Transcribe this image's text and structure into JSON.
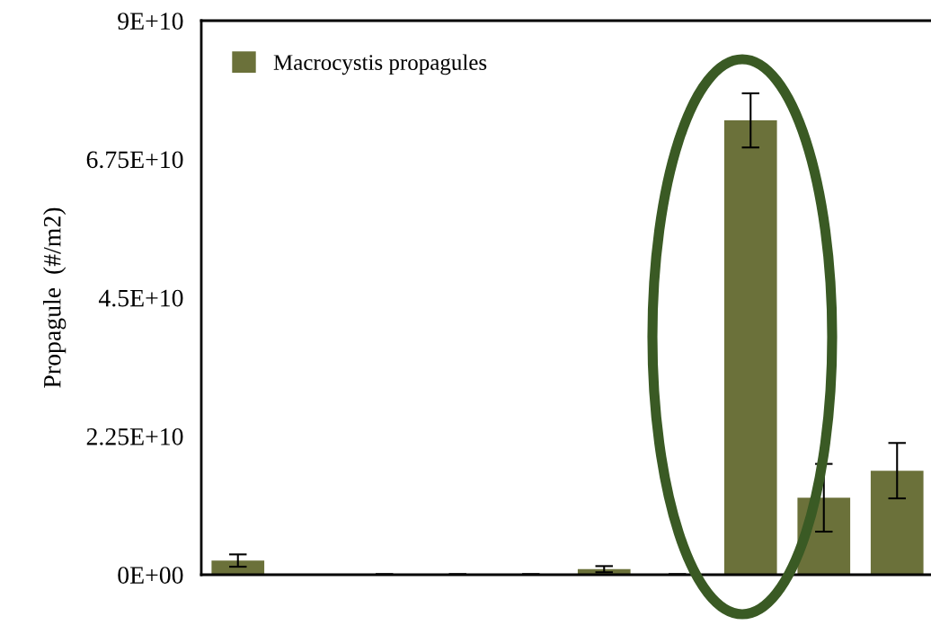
{
  "chart_data": {
    "type": "bar",
    "ylabel": "Propagule  (#/m2)",
    "categories": [
      null,
      null,
      null,
      null,
      null,
      null,
      null,
      null,
      null,
      null
    ],
    "series": [
      {
        "name": "Macrocystis propagules",
        "color": "#6b713a",
        "values": [
          2300000000,
          0,
          0,
          0,
          0,
          900000000,
          0,
          73800000000,
          12500000000,
          16900000000
        ],
        "errors": [
          1000000000,
          null,
          100000000,
          100000000,
          100000000,
          500000000,
          100000000,
          4400000000,
          5500000000,
          4500000000
        ]
      }
    ],
    "ylim": [
      0,
      90000000000
    ],
    "yticks": [
      {
        "value": 0,
        "label": "0E+00"
      },
      {
        "value": 22500000000,
        "label": "2.25E+10"
      },
      {
        "value": 45000000000,
        "label": "4.5E+10"
      },
      {
        "value": 67500000000,
        "label": "6.75E+10"
      },
      {
        "value": 90000000000,
        "label": "9E+10"
      }
    ],
    "grid": false,
    "legend": "top left",
    "tick_labels": "y"
  }
}
